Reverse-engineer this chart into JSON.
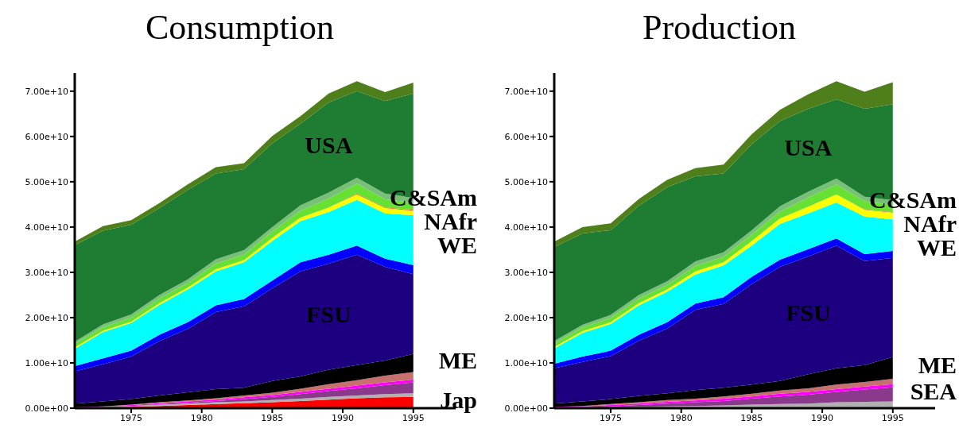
{
  "chart_data": [
    {
      "type": "area",
      "title": "Consumption",
      "stacked": true,
      "x": [
        1971,
        1973,
        1975,
        1977,
        1979,
        1981,
        1983,
        1985,
        1987,
        1989,
        1991,
        1993,
        1995
      ],
      "xlim": [
        1971,
        1998
      ],
      "xticks": [
        1975,
        1980,
        1985,
        1990,
        1995
      ],
      "ylim": [
        0,
        74000000000.0
      ],
      "yticks": [
        {
          "value": 0,
          "label": "0.00e+00"
        },
        {
          "value": 10000000000.0,
          "label": "1.00e+10"
        },
        {
          "value": 20000000000.0,
          "label": "2.00e+10"
        },
        {
          "value": 30000000000.0,
          "label": "3.00e+10"
        },
        {
          "value": 40000000000.0,
          "label": "4.00e+10"
        },
        {
          "value": 50000000000.0,
          "label": "5.00e+10"
        },
        {
          "value": 60000000000.0,
          "label": "6.00e+10"
        },
        {
          "value": 70000000000.0,
          "label": "7.00e+10"
        }
      ],
      "series": [
        {
          "name": "Jap",
          "color": "#ff0000",
          "values": [
            0,
            100000000.0,
            300000000.0,
            500000000.0,
            700000000.0,
            900000000.0,
            1100000000.0,
            1300000000.0,
            1600000000.0,
            1900000000.0,
            2200000000.0,
            2400000000.0,
            2500000000.0
          ]
        },
        {
          "color": "#b0b0b0",
          "values": [
            100000000.0,
            200000000.0,
            200000000.0,
            300000000.0,
            300000000.0,
            400000000.0,
            400000000.0,
            500000000.0,
            500000000.0,
            600000000.0,
            600000000.0,
            700000000.0,
            800000000.0
          ]
        },
        {
          "color": "#8b3a8b",
          "values": [
            0,
            0,
            0,
            100000000.0,
            200000000.0,
            300000000.0,
            500000000.0,
            700000000.0,
            1000000000.0,
            1300000000.0,
            1600000000.0,
            2000000000.0,
            2400000000.0
          ]
        },
        {
          "color": "#ff00ff",
          "values": [
            100000000.0,
            100000000.0,
            200000000.0,
            200000000.0,
            300000000.0,
            300000000.0,
            400000000.0,
            400000000.0,
            500000000.0,
            500000000.0,
            600000000.0,
            600000000.0,
            600000000.0
          ]
        },
        {
          "color": "#c87070",
          "values": [
            0,
            0,
            100000000.0,
            200000000.0,
            200000000.0,
            300000000.0,
            400000000.0,
            500000000.0,
            700000000.0,
            1000000000.0,
            1200000000.0,
            1500000000.0,
            1700000000.0
          ]
        },
        {
          "name": "ME",
          "color": "#000000",
          "values": [
            800000000.0,
            1100000000.0,
            1200000000.0,
            1500000000.0,
            1800000000.0,
            2000000000.0,
            1700000000.0,
            2600000000.0,
            2700000000.0,
            3200000000.0,
            3300000000.0,
            3300000000.0,
            4000000000.0
          ]
        },
        {
          "name": "FSU",
          "color": "#1c0080",
          "values": [
            7100000000.0,
            8200000000.0,
            9400000000.0,
            12000000000.0,
            14000000000.0,
            17000000000.0,
            18000000000.0,
            20500000000.0,
            23200000000.0,
            23400000000.0,
            24400000000.0,
            20700000000.0,
            17600000000.0
          ]
        },
        {
          "color": "#0000ff",
          "values": [
            1200000000.0,
            1300000000.0,
            1300000000.0,
            1400000000.0,
            1500000000.0,
            1500000000.0,
            1600000000.0,
            1700000000.0,
            2000000000.0,
            2000000000.0,
            2000000000.0,
            1800000000.0,
            2000000000.0
          ]
        },
        {
          "name": "WE",
          "color": "#00ffff",
          "values": [
            3800000000.0,
            5800000000.0,
            6100000000.0,
            6600000000.0,
            7200000000.0,
            7500000000.0,
            8100000000.0,
            8700000000.0,
            9100000000.0,
            9400000000.0,
            10100000000.0,
            10000000000.0,
            11000000000.0
          ]
        },
        {
          "color": "#ffff00",
          "values": [
            300000000.0,
            300000000.0,
            300000000.0,
            400000000.0,
            400000000.0,
            500000000.0,
            500000000.0,
            700000000.0,
            800000000.0,
            1000000000.0,
            1200000000.0,
            1200000000.0,
            1000000000.0
          ]
        },
        {
          "name": "NAfr",
          "color": "#ff6020",
          "values": [
            0,
            0,
            0,
            0,
            0,
            0,
            0,
            0,
            0,
            0,
            200000000.0,
            100000000.0,
            200000000.0
          ]
        },
        {
          "color": "#66e033",
          "values": [
            800000000.0,
            800000000.0,
            900000000.0,
            1000000000.0,
            1000000000.0,
            1200000000.0,
            1200000000.0,
            1400000000.0,
            1500000000.0,
            2000000000.0,
            2200000000.0,
            1800000000.0,
            1600000000.0
          ]
        },
        {
          "name": "C&SAm",
          "color": "#78c078",
          "values": [
            500000000.0,
            600000000.0,
            700000000.0,
            800000000.0,
            800000000.0,
            1000000000.0,
            1000000000.0,
            1000000000.0,
            1200000000.0,
            1300000000.0,
            1300000000.0,
            1300000000.0,
            1000000000.0
          ]
        },
        {
          "name": "USA",
          "color": "#1e7d32",
          "values": [
            21300000000.0,
            20700000000.0,
            19800000000.0,
            19200000000.0,
            19800000000.0,
            18900000000.0,
            17900000000.0,
            18500000000.0,
            18000000000.0,
            19900000000.0,
            19100000000.0,
            20400000000.0,
            23100000000.0
          ]
        },
        {
          "color": "#4f7f1a",
          "values": [
            800000000.0,
            1000000000.0,
            1000000000.0,
            1100000000.0,
            1200000000.0,
            1400000000.0,
            1300000000.0,
            1600000000.0,
            1700000000.0,
            2000000000.0,
            2200000000.0,
            2000000000.0,
            2400000000.0
          ]
        }
      ]
    },
    {
      "type": "area",
      "title": "Production",
      "stacked": true,
      "x": [
        1971,
        1973,
        1975,
        1977,
        1979,
        1981,
        1983,
        1985,
        1987,
        1989,
        1991,
        1993,
        1995
      ],
      "xlim": [
        1971,
        1998
      ],
      "xticks": [
        1975,
        1980,
        1985,
        1990,
        1995
      ],
      "ylim": [
        0,
        74000000000.0
      ],
      "yticks": [
        {
          "value": 0,
          "label": "0.00e+00"
        },
        {
          "value": 10000000000.0,
          "label": "1.00e+10"
        },
        {
          "value": 20000000000.0,
          "label": "2.00e+10"
        },
        {
          "value": 30000000000.0,
          "label": "3.00e+10"
        },
        {
          "value": 40000000000.0,
          "label": "4.00e+10"
        },
        {
          "value": 50000000000.0,
          "label": "5.00e+10"
        },
        {
          "value": 60000000000.0,
          "label": "6.00e+10"
        },
        {
          "value": 70000000000.0,
          "label": "7.00e+10"
        }
      ],
      "series": [
        {
          "color": "#b0b0b0",
          "values": [
            100000000.0,
            100000000.0,
            200000000.0,
            300000000.0,
            400000000.0,
            500000000.0,
            600000000.0,
            800000000.0,
            900000000.0,
            1000000000.0,
            1300000000.0,
            1400000000.0,
            1500000000.0
          ]
        },
        {
          "name": "SEA",
          "color": "#8b3a8b",
          "values": [
            0,
            100000000.0,
            200000000.0,
            400000000.0,
            600000000.0,
            800000000.0,
            1000000000.0,
            1300000000.0,
            1700000000.0,
            2000000000.0,
            2300000000.0,
            2700000000.0,
            3100000000.0
          ]
        },
        {
          "color": "#ff00ff",
          "values": [
            200000000.0,
            200000000.0,
            300000000.0,
            300000000.0,
            400000000.0,
            400000000.0,
            500000000.0,
            500000000.0,
            600000000.0,
            600000000.0,
            600000000.0,
            700000000.0,
            700000000.0
          ]
        },
        {
          "color": "#c87070",
          "values": [
            0,
            100000000.0,
            200000000.0,
            300000000.0,
            400000000.0,
            400000000.0,
            500000000.0,
            600000000.0,
            700000000.0,
            800000000.0,
            1000000000.0,
            1000000000.0,
            1200000000.0
          ]
        },
        {
          "name": "ME",
          "color": "#000000",
          "values": [
            700000000.0,
            1000000000.0,
            1100000000.0,
            1400000000.0,
            1500000000.0,
            1900000000.0,
            1900000000.0,
            2000000000.0,
            2100000000.0,
            3100000000.0,
            3600000000.0,
            3700000000.0,
            4800000000.0
          ]
        },
        {
          "name": "FSU",
          "color": "#1c0080",
          "values": [
            7800000000.0,
            8700000000.0,
            9500000000.0,
            12200000000.0,
            14300000000.0,
            17700000000.0,
            18500000000.0,
            22200000000.0,
            25200000000.0,
            26000000000.0,
            27100000000.0,
            23000000000.0,
            21900000000.0
          ]
        },
        {
          "color": "#0000ff",
          "values": [
            1000000000.0,
            1200000000.0,
            1200000000.0,
            1300000000.0,
            1400000000.0,
            1400000000.0,
            1500000000.0,
            1600000000.0,
            1600000000.0,
            1600000000.0,
            1600000000.0,
            1500000000.0,
            1500000000.0
          ]
        },
        {
          "name": "WE",
          "color": "#00ffff",
          "values": [
            3400000000.0,
            5200000000.0,
            5900000000.0,
            6500000000.0,
            6700000000.0,
            6400000000.0,
            7000000000.0,
            6900000000.0,
            7900000000.0,
            7900000000.0,
            7900000000.0,
            8300000000.0,
            7000000000.0
          ]
        },
        {
          "color": "#ffff00",
          "values": [
            300000000.0,
            400000000.0,
            400000000.0,
            500000000.0,
            500000000.0,
            700000000.0,
            700000000.0,
            1000000000.0,
            1200000000.0,
            1500000000.0,
            1800000000.0,
            1500000000.0,
            1500000000.0
          ]
        },
        {
          "name": "NAfr",
          "color": "#ff6020",
          "values": [
            0,
            0,
            0,
            0,
            0,
            0,
            0,
            0,
            0,
            0,
            0,
            100000000.0,
            100000000.0
          ]
        },
        {
          "color": "#66e033",
          "values": [
            800000000.0,
            800000000.0,
            900000000.0,
            1000000000.0,
            1000000000.0,
            1200000000.0,
            1200000000.0,
            1400000000.0,
            1500000000.0,
            2000000000.0,
            2200000000.0,
            1800000000.0,
            1600000000.0
          ]
        },
        {
          "name": "C&SAm",
          "color": "#78c078",
          "values": [
            500000000.0,
            600000000.0,
            700000000.0,
            800000000.0,
            800000000.0,
            1000000000.0,
            1000000000.0,
            1000000000.0,
            1200000000.0,
            1300000000.0,
            1300000000.0,
            1000000000.0,
            1000000000.0
          ]
        },
        {
          "name": "USA",
          "color": "#1e7d32",
          "values": [
            20800000000.0,
            20200000000.0,
            18700000000.0,
            19700000000.0,
            20800000000.0,
            18800000000.0,
            17400000000.0,
            19000000000.0,
            18800000000.0,
            18300000000.0,
            17500000000.0,
            19400000000.0,
            21200000000.0
          ]
        },
        {
          "color": "#4f7f1a",
          "values": [
            1200000000.0,
            1400000000.0,
            1500000000.0,
            1500000000.0,
            1600000000.0,
            1800000000.0,
            2000000000.0,
            2200000000.0,
            2500000000.0,
            3200000000.0,
            4000000000.0,
            3800000000.0,
            4900000000.0
          ]
        }
      ]
    }
  ]
}
